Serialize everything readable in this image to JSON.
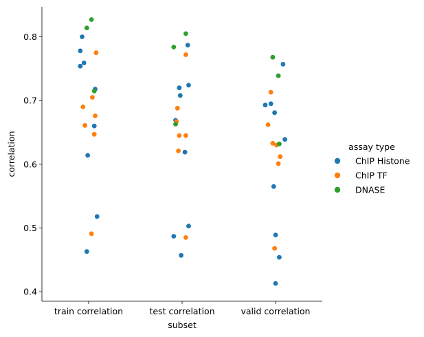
{
  "chart_data": {
    "type": "scatter",
    "subtype": "strip",
    "xlabel": "subset",
    "ylabel": "correlation",
    "categories": [
      "train correlation",
      "test correlation",
      "valid correlation"
    ],
    "ylim": [
      0.385,
      0.847
    ],
    "yticks": [
      0.4,
      0.5,
      0.6,
      0.7,
      0.8
    ],
    "ytick_labels": [
      "0.4",
      "0.5",
      "0.6",
      "0.7",
      "0.8"
    ],
    "grid": false,
    "legend": {
      "title": "assay type",
      "placement": "right",
      "entries": [
        "ChIP Histone",
        "ChIP TF",
        "DNASE"
      ]
    },
    "colors": {
      "ChIP Histone": "#1f77b4",
      "ChIP TF": "#ff7f0e",
      "DNASE": "#2ca02c"
    },
    "series": [
      {
        "name": "ChIP Histone",
        "points": [
          {
            "category": "train correlation",
            "y": 0.8,
            "jitter": -0.07
          },
          {
            "category": "train correlation",
            "y": 0.778,
            "jitter": -0.09
          },
          {
            "category": "train correlation",
            "y": 0.759,
            "jitter": -0.05
          },
          {
            "category": "train correlation",
            "y": 0.754,
            "jitter": -0.09
          },
          {
            "category": "train correlation",
            "y": 0.718,
            "jitter": 0.07
          },
          {
            "category": "train correlation",
            "y": 0.66,
            "jitter": 0.06
          },
          {
            "category": "train correlation",
            "y": 0.614,
            "jitter": -0.01
          },
          {
            "category": "train correlation",
            "y": 0.518,
            "jitter": 0.09
          },
          {
            "category": "train correlation",
            "y": 0.463,
            "jitter": -0.02
          },
          {
            "category": "test correlation",
            "y": 0.787,
            "jitter": 0.06
          },
          {
            "category": "test correlation",
            "y": 0.724,
            "jitter": 0.07
          },
          {
            "category": "test correlation",
            "y": 0.72,
            "jitter": -0.03
          },
          {
            "category": "test correlation",
            "y": 0.708,
            "jitter": -0.02
          },
          {
            "category": "test correlation",
            "y": 0.669,
            "jitter": -0.07
          },
          {
            "category": "test correlation",
            "y": 0.619,
            "jitter": 0.03
          },
          {
            "category": "test correlation",
            "y": 0.503,
            "jitter": 0.07
          },
          {
            "category": "test correlation",
            "y": 0.487,
            "jitter": -0.09
          },
          {
            "category": "test correlation",
            "y": 0.457,
            "jitter": -0.01
          },
          {
            "category": "valid correlation",
            "y": 0.757,
            "jitter": 0.08
          },
          {
            "category": "valid correlation",
            "y": 0.695,
            "jitter": -0.05
          },
          {
            "category": "valid correlation",
            "y": 0.693,
            "jitter": -0.11
          },
          {
            "category": "valid correlation",
            "y": 0.681,
            "jitter": -0.01
          },
          {
            "category": "valid correlation",
            "y": 0.639,
            "jitter": 0.1
          },
          {
            "category": "valid correlation",
            "y": 0.565,
            "jitter": -0.02
          },
          {
            "category": "valid correlation",
            "y": 0.489,
            "jitter": 0.0
          },
          {
            "category": "valid correlation",
            "y": 0.454,
            "jitter": 0.04
          },
          {
            "category": "valid correlation",
            "y": 0.413,
            "jitter": 0.0
          }
        ]
      },
      {
        "name": "ChIP TF",
        "points": [
          {
            "category": "train correlation",
            "y": 0.775,
            "jitter": 0.08
          },
          {
            "category": "train correlation",
            "y": 0.705,
            "jitter": 0.04
          },
          {
            "category": "train correlation",
            "y": 0.69,
            "jitter": -0.06
          },
          {
            "category": "train correlation",
            "y": 0.676,
            "jitter": 0.07
          },
          {
            "category": "train correlation",
            "y": 0.661,
            "jitter": -0.04
          },
          {
            "category": "train correlation",
            "y": 0.647,
            "jitter": 0.06
          },
          {
            "category": "train correlation",
            "y": 0.491,
            "jitter": 0.03
          },
          {
            "category": "test correlation",
            "y": 0.772,
            "jitter": 0.04
          },
          {
            "category": "test correlation",
            "y": 0.688,
            "jitter": -0.05
          },
          {
            "category": "test correlation",
            "y": 0.667,
            "jitter": -0.06
          },
          {
            "category": "test correlation",
            "y": 0.645,
            "jitter": -0.03
          },
          {
            "category": "test correlation",
            "y": 0.645,
            "jitter": 0.04
          },
          {
            "category": "test correlation",
            "y": 0.621,
            "jitter": -0.04
          },
          {
            "category": "test correlation",
            "y": 0.485,
            "jitter": 0.04
          },
          {
            "category": "valid correlation",
            "y": 0.713,
            "jitter": -0.05
          },
          {
            "category": "valid correlation",
            "y": 0.662,
            "jitter": -0.08
          },
          {
            "category": "valid correlation",
            "y": 0.633,
            "jitter": -0.03
          },
          {
            "category": "valid correlation",
            "y": 0.63,
            "jitter": 0.01
          },
          {
            "category": "valid correlation",
            "y": 0.612,
            "jitter": 0.05
          },
          {
            "category": "valid correlation",
            "y": 0.601,
            "jitter": 0.03
          },
          {
            "category": "valid correlation",
            "y": 0.468,
            "jitter": -0.01
          }
        ]
      },
      {
        "name": "DNASE",
        "points": [
          {
            "category": "train correlation",
            "y": 0.827,
            "jitter": 0.03
          },
          {
            "category": "train correlation",
            "y": 0.814,
            "jitter": -0.02
          },
          {
            "category": "train correlation",
            "y": 0.715,
            "jitter": 0.06
          },
          {
            "category": "test correlation",
            "y": 0.805,
            "jitter": 0.04
          },
          {
            "category": "test correlation",
            "y": 0.784,
            "jitter": -0.09
          },
          {
            "category": "test correlation",
            "y": 0.663,
            "jitter": -0.07
          },
          {
            "category": "valid correlation",
            "y": 0.768,
            "jitter": -0.03
          },
          {
            "category": "valid correlation",
            "y": 0.739,
            "jitter": 0.03
          },
          {
            "category": "valid correlation",
            "y": 0.632,
            "jitter": 0.04
          }
        ]
      }
    ]
  }
}
